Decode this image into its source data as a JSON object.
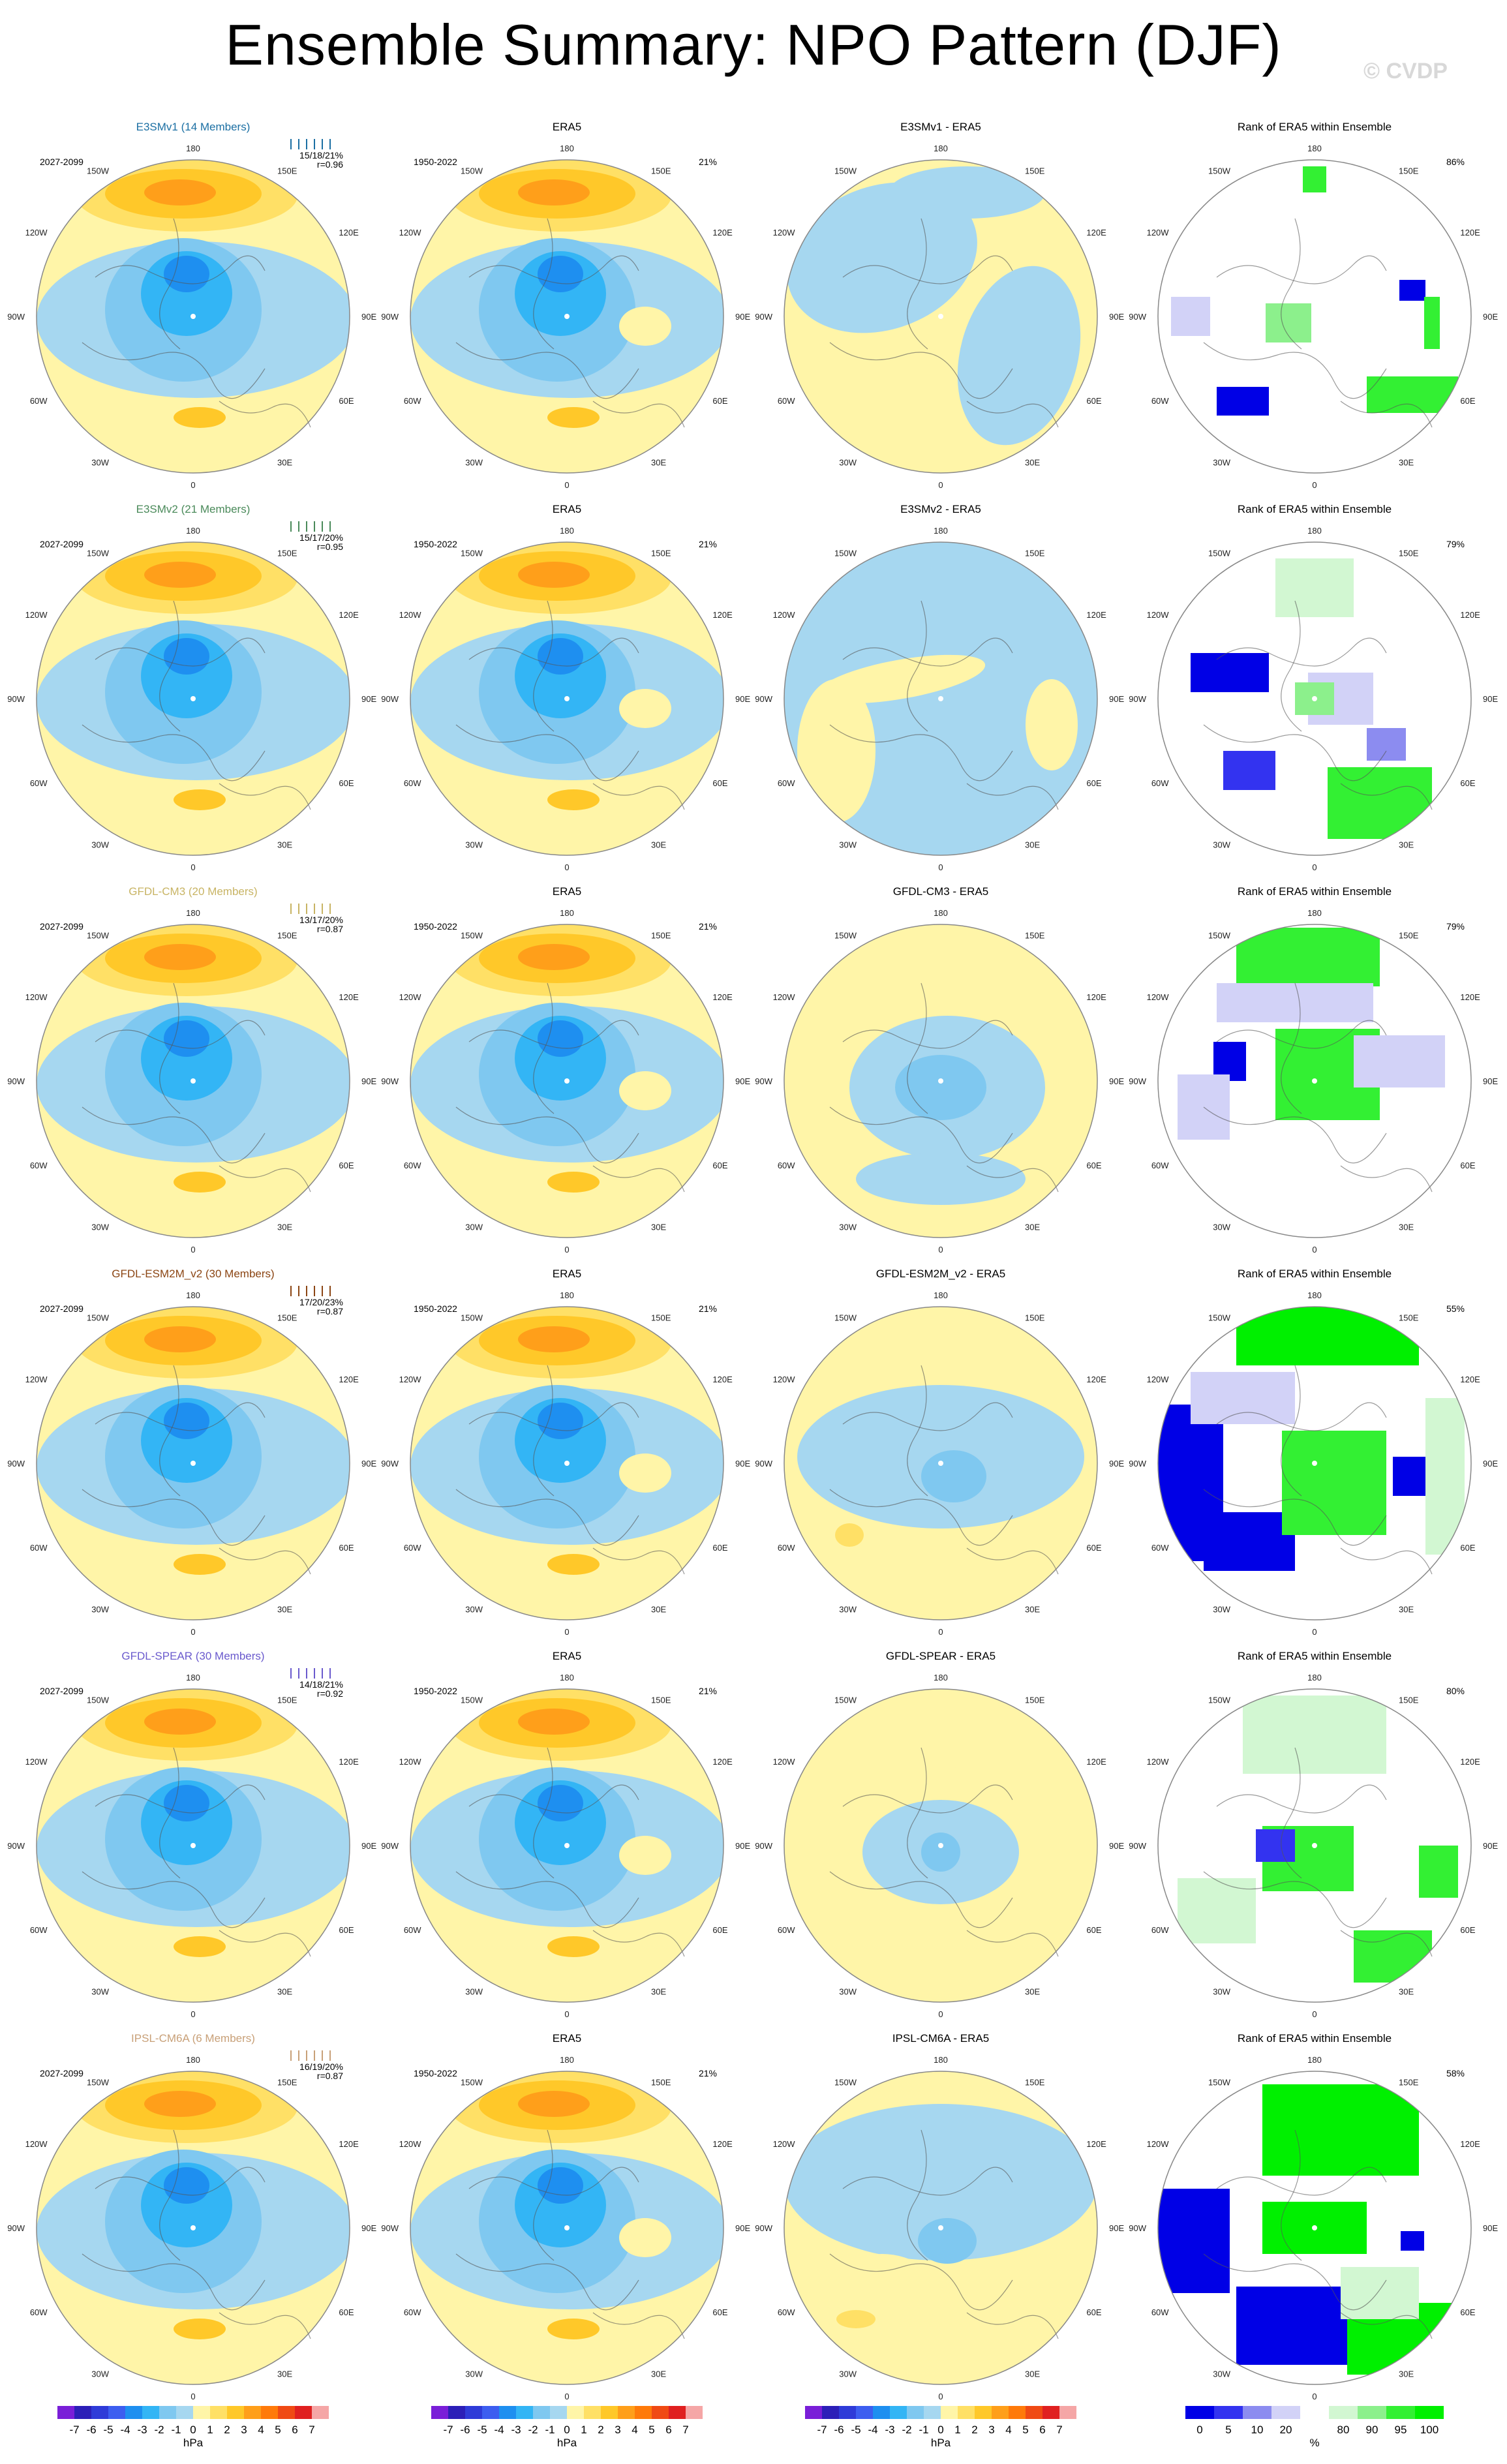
{
  "title": "Ensemble Summary: NPO Pattern (DJF)",
  "copyright": "© CVDP",
  "colors": {
    "neg": [
      "#a6d7f0",
      "#7fc8f0",
      "#33b5f5",
      "#1e8ff0",
      "#3d5ef0",
      "#2f3bd8",
      "#2c1fb8",
      "#7a1ed8"
    ],
    "pos": [
      "#fff5a8",
      "#ffe066",
      "#ffc829",
      "#ff9f1a",
      "#ff7a0a",
      "#f04a14",
      "#e02020",
      "#f5a6a6"
    ],
    "rank": {
      "dark_blue": "#0000e6",
      "blue": "#3333f0",
      "mid_blue": "#8c8cf0",
      "light_blue": "#d2d2f7",
      "light_green": "#d2f7d2",
      "mid_green": "#8cf08c",
      "green": "#33f033",
      "bright_green": "#00f000"
    },
    "model_name_colors": {
      "E3SMv1": "#1b6fa3",
      "E3SMv2": "#4a8a5a",
      "GFDL-CM3": "#c8b464",
      "GFDL-ESM2M_v2": "#8b4513",
      "GFDL-SPEAR": "#6a5acd",
      "IPSL-CM6A": "#c8a078"
    }
  },
  "labels": {
    "lon": [
      "180",
      "150E",
      "120E",
      "90E",
      "60E",
      "30E",
      "0",
      "30W",
      "60W",
      "90W",
      "120W",
      "150W"
    ],
    "era5": "ERA5",
    "era5_period": "1950-2022",
    "era5_pct": "21%",
    "rank_title": "Rank of ERA5 within Ensemble"
  },
  "rows": [
    {
      "model": "E3SMv1",
      "members": "E3SMv1 (14 Members)",
      "period": "2027-2099",
      "stats": "15/18/21%",
      "r": "r=0.96",
      "diff_title": "E3SMv1 - ERA5",
      "rank_pct": "86%"
    },
    {
      "model": "E3SMv2",
      "members": "E3SMv2 (21 Members)",
      "period": "2027-2099",
      "stats": "15/17/20%",
      "r": "r=0.95",
      "diff_title": "E3SMv2 - ERA5",
      "rank_pct": "79%"
    },
    {
      "model": "GFDL-CM3",
      "members": "GFDL-CM3 (20 Members)",
      "period": "2027-2099",
      "stats": "13/17/20%",
      "r": "r=0.87",
      "diff_title": "GFDL-CM3 - ERA5",
      "rank_pct": "79%"
    },
    {
      "model": "GFDL-ESM2M_v2",
      "members": "GFDL-ESM2M_v2 (30 Members)",
      "period": "2027-2099",
      "stats": "17/20/23%",
      "r": "r=0.87",
      "diff_title": "GFDL-ESM2M_v2 - ERA5",
      "rank_pct": "55%"
    },
    {
      "model": "GFDL-SPEAR",
      "members": "GFDL-SPEAR (30 Members)",
      "period": "2027-2099",
      "stats": "14/18/21%",
      "r": "r=0.92",
      "diff_title": "GFDL-SPEAR - ERA5",
      "rank_pct": "80%"
    },
    {
      "model": "IPSL-CM6A",
      "members": "IPSL-CM6A (6 Members)",
      "period": "2027-2099",
      "stats": "16/19/20%",
      "r": "r=0.87",
      "diff_title": "IPSL-CM6A - ERA5",
      "rank_pct": "58%"
    }
  ],
  "colorbar": {
    "ticks": [
      "-7",
      "-6",
      "-5",
      "-4",
      "-3",
      "-2",
      "-1",
      "0",
      "1",
      "2",
      "3",
      "4",
      "5",
      "6",
      "7"
    ],
    "unit": "hPa"
  },
  "rank_colorbar": {
    "ticks": [
      "0",
      "5",
      "10",
      "20",
      "80",
      "90",
      "95",
      "100"
    ],
    "unit": "%"
  },
  "chart_data": {
    "type": "heatmap",
    "title": "Ensemble Summary: NPO Pattern (DJF)",
    "projection": "north-polar stereographic",
    "variable": "sea level pressure anomaly",
    "units": "hPa",
    "contour_levels": [
      -7,
      -6,
      -5,
      -4,
      -3,
      -2,
      -1,
      0,
      1,
      2,
      3,
      4,
      5,
      6,
      7
    ],
    "rank_levels": [
      0,
      5,
      10,
      20,
      80,
      90,
      95,
      100
    ],
    "columns": [
      "Model ensemble mean",
      "ERA5",
      "Model - ERA5",
      "Rank of ERA5 within Ensemble"
    ],
    "models": [
      {
        "name": "E3SMv1",
        "members": 14,
        "pct_variance": [
          15,
          18,
          21
        ],
        "pattern_r": 0.96,
        "rank_pct": 86,
        "era5_pct": 21
      },
      {
        "name": "E3SMv2",
        "members": 21,
        "pct_variance": [
          15,
          17,
          20
        ],
        "pattern_r": 0.95,
        "rank_pct": 79,
        "era5_pct": 21
      },
      {
        "name": "GFDL-CM3",
        "members": 20,
        "pct_variance": [
          13,
          17,
          20
        ],
        "pattern_r": 0.87,
        "rank_pct": 79,
        "era5_pct": 21
      },
      {
        "name": "GFDL-ESM2M_v2",
        "members": 30,
        "pct_variance": [
          17,
          20,
          23
        ],
        "pattern_r": 0.87,
        "rank_pct": 55,
        "era5_pct": 21
      },
      {
        "name": "GFDL-SPEAR",
        "members": 30,
        "pct_variance": [
          14,
          18,
          21
        ],
        "pattern_r": 0.92,
        "rank_pct": 80,
        "era5_pct": 21
      },
      {
        "name": "IPSL-CM6A",
        "members": 6,
        "pct_variance": [
          16,
          19,
          20
        ],
        "pattern_r": 0.87,
        "rank_pct": 58,
        "era5_pct": 21
      }
    ]
  }
}
